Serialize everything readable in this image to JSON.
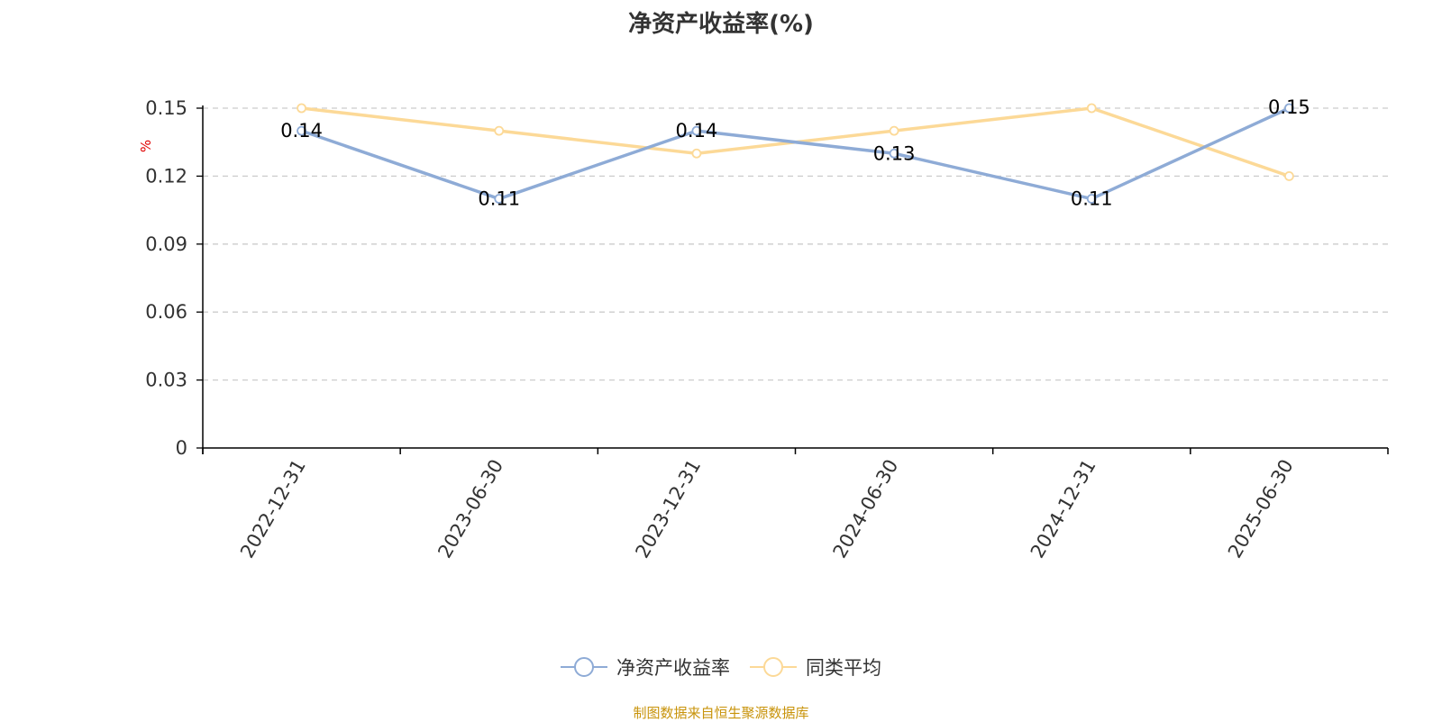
{
  "chart_data": {
    "type": "line",
    "title": "净资产收益率(%)",
    "ylabel": "%",
    "xlabel": "",
    "categories": [
      "2022-12-31",
      "2023-06-30",
      "2023-12-31",
      "2024-06-30",
      "2024-12-31",
      "2025-06-30"
    ],
    "y_ticks": [
      "0",
      "0.03",
      "0.06",
      "0.09",
      "0.12",
      "0.15"
    ],
    "ylim": [
      0,
      0.15
    ],
    "grid": true,
    "legend_position": "bottom",
    "series": [
      {
        "name": "净资产收益率",
        "values": [
          0.14,
          0.11,
          0.14,
          0.13,
          0.11,
          0.15
        ],
        "color": "#8eabd6",
        "data_labels": [
          "0.14",
          "0.11",
          "0.14",
          "0.13",
          "0.11",
          "0.15"
        ]
      },
      {
        "name": "同类平均",
        "values": [
          0.15,
          0.14,
          0.13,
          0.14,
          0.15,
          0.12
        ],
        "color": "#fcd997"
      }
    ]
  },
  "source_text": "制图数据来自恒生聚源数据库",
  "colors": {
    "axis": "#000000",
    "grid": "#cccccc",
    "ylabel": "#e00000",
    "source": "#c8930a",
    "title": "#333333"
  }
}
